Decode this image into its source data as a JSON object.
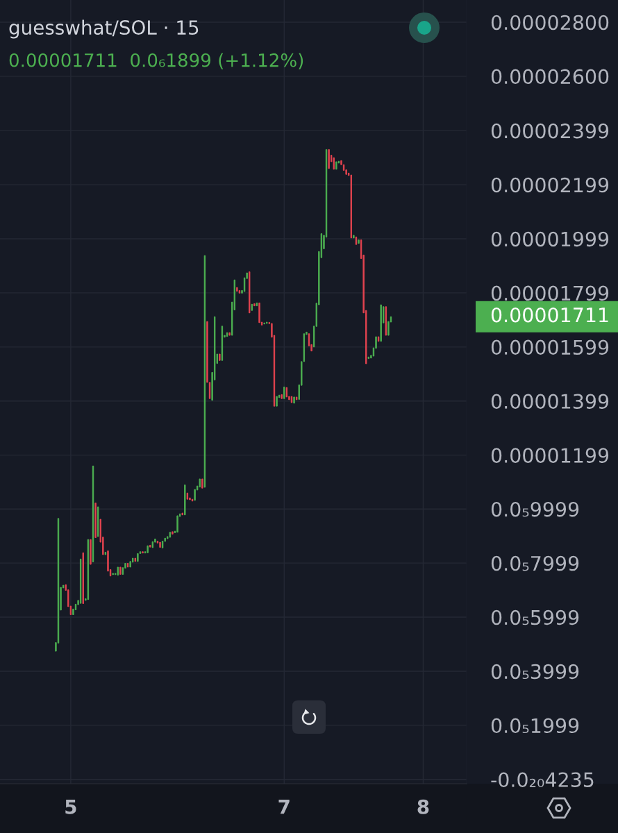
{
  "chart_data": {
    "type": "candlestick",
    "title": "guesswhat/SOL · 15",
    "subtitle": "0.00001711  0.0₆1899 (+1.12%)",
    "annotations": [
      "0.00001711"
    ],
    "categories": [
      null,
      null,
      null,
      null,
      null,
      null,
      null,
      null,
      null,
      null,
      null,
      null,
      null,
      null,
      null,
      null,
      null,
      null,
      null,
      null,
      null,
      null,
      null,
      null,
      null,
      null,
      null,
      null,
      "5",
      null,
      null,
      null,
      null,
      null,
      null,
      null,
      null,
      null,
      null,
      null,
      null,
      null,
      null,
      null,
      null,
      null,
      null,
      null,
      null,
      null,
      null,
      null,
      null,
      null,
      null,
      null,
      null,
      null,
      null,
      null,
      null,
      null,
      null,
      null,
      null,
      null,
      null,
      null,
      null,
      null,
      null,
      null,
      null,
      null,
      null,
      null,
      null,
      null,
      null,
      null,
      null,
      null,
      null,
      null,
      null,
      null,
      null,
      null,
      null,
      null,
      null,
      null,
      null,
      null,
      null,
      null,
      null,
      null,
      null,
      null,
      null,
      null,
      null,
      null,
      null,
      null,
      null,
      null,
      null,
      null,
      null,
      null,
      null,
      null,
      "7",
      null,
      null,
      null,
      null,
      null,
      null,
      null,
      null,
      null,
      null,
      null,
      null,
      null,
      null,
      null,
      null,
      null,
      null,
      null,
      null,
      null,
      null,
      null,
      null,
      null,
      null,
      null,
      null,
      null,
      null,
      null,
      null,
      null,
      null,
      null,
      null,
      null,
      null,
      null,
      null,
      null,
      null,
      null,
      null,
      null,
      null,
      null,
      null,
      null,
      null,
      null,
      null,
      null,
      null,
      null,
      "8",
      null,
      null,
      null,
      null,
      null,
      null,
      null,
      null,
      null,
      null,
      null,
      null,
      null,
      null,
      null,
      null,
      null
    ],
    "ohlc": [
      null,
      null,
      null,
      null,
      null,
      null,
      null,
      null,
      null,
      null,
      null,
      null,
      null,
      null,
      null,
      null,
      null,
      null,
      null,
      null,
      null,
      null,
      [
        4.74e-06,
        5.06e-06,
        4.74e-06,
        5.06e-06
      ],
      [
        5.04e-06,
        9.65e-06,
        5.04e-06,
        9.65e-06
      ],
      [
        6.26e-06,
        7.1e-06,
        6.26e-06,
        7.1e-06
      ],
      [
        7.08e-06,
        7.18e-06,
        7.08e-06,
        7.18e-06
      ],
      [
        7.2e-06,
        7.2e-06,
        6.99e-06,
        6.99e-06
      ],
      [
        7.01e-06,
        7.01e-06,
        6.39e-06,
        6.39e-06
      ],
      [
        6.41e-06,
        6.41e-06,
        6.09e-06,
        6.09e-06
      ],
      [
        6.09e-06,
        6.3e-06,
        6.09e-06,
        6.3e-06
      ],
      [
        6.27e-06,
        6.48e-06,
        6.27e-06,
        6.48e-06
      ],
      [
        6.46e-06,
        6.62e-06,
        6.46e-06,
        6.62e-06
      ],
      [
        6.51e-06,
        8.15e-06,
        6.51e-06,
        8.15e-06
      ],
      [
        8.38e-06,
        8.38e-06,
        6.5e-06,
        6.5e-06
      ],
      [
        6.62e-06,
        6.68e-06,
        6.62e-06,
        6.68e-06
      ],
      [
        6.65e-06,
        8.87e-06,
        6.65e-06,
        8.87e-06
      ],
      [
        8.87e-06,
        8.87e-06,
        7.95e-06,
        7.95e-06
      ],
      [
        8.04e-06,
        1.159e-05,
        8.04e-06,
        1.159e-05
      ],
      [
        1.022e-05,
        1.022e-05,
        8.94e-06,
        8.94e-06
      ],
      [
        8.98e-06,
        1.008e-05,
        8.98e-06,
        1.008e-05
      ],
      [
        9.62e-06,
        9.62e-06,
        8.77e-06,
        8.77e-06
      ],
      [
        8.96e-06,
        8.96e-06,
        8.31e-06,
        8.31e-06
      ],
      [
        8.31e-06,
        8.4e-06,
        8.31e-06,
        8.4e-06
      ],
      [
        8.45e-06,
        8.45e-06,
        7.7e-06,
        7.7e-06
      ],
      [
        7.76e-06,
        7.76e-06,
        7.52e-06,
        7.52e-06
      ],
      [
        7.57e-06,
        7.62e-06,
        7.57e-06,
        7.62e-06
      ],
      [
        7.57e-06,
        7.62e-06,
        7.57e-06,
        7.62e-06
      ],
      [
        7.55e-06,
        7.85e-06,
        7.55e-06,
        7.85e-06
      ],
      [
        7.85e-06,
        7.85e-06,
        7.58e-06,
        7.58e-06
      ],
      [
        7.58e-06,
        7.83e-06,
        7.58e-06,
        7.83e-06
      ],
      [
        7.81e-06,
        7.99e-06,
        7.81e-06,
        7.99e-06
      ],
      [
        7.99e-06,
        7.99e-06,
        7.85e-06,
        7.85e-06
      ],
      [
        7.85e-06,
        8.06e-06,
        7.85e-06,
        8.06e-06
      ],
      [
        8.03e-06,
        8.18e-06,
        8.03e-06,
        8.18e-06
      ],
      [
        8.18e-06,
        8.18e-06,
        8.06e-06,
        8.06e-06
      ],
      [
        8.06e-06,
        8.35e-06,
        8.06e-06,
        8.35e-06
      ],
      [
        8.35e-06,
        8.42e-06,
        8.35e-06,
        8.42e-06
      ],
      [
        8.42e-06,
        8.42e-06,
        8.37e-06,
        8.37e-06
      ],
      [
        8.37e-06,
        8.42e-06,
        8.37e-06,
        8.42e-06
      ],
      [
        8.38e-06,
        8.64e-06,
        8.38e-06,
        8.64e-06
      ],
      [
        8.66e-06,
        8.66e-06,
        8.59e-06,
        8.59e-06
      ],
      [
        8.57e-06,
        8.79e-06,
        8.57e-06,
        8.79e-06
      ],
      [
        8.77e-06,
        8.89e-06,
        8.77e-06,
        8.89e-06
      ],
      [
        8.81e-06,
        8.81e-06,
        8.74e-06,
        8.74e-06
      ],
      [
        8.77e-06,
        8.77e-06,
        8.58e-06,
        8.58e-06
      ],
      [
        8.56e-06,
        8.81e-06,
        8.56e-06,
        8.81e-06
      ],
      [
        8.8e-06,
        8.92e-06,
        8.8e-06,
        8.92e-06
      ],
      [
        8.9e-06,
        8.98e-06,
        8.9e-06,
        8.98e-06
      ],
      [
        8.95e-06,
        9.14e-06,
        8.95e-06,
        9.14e-06
      ],
      [
        9.16e-06,
        9.16e-06,
        9.07e-06,
        9.07e-06
      ],
      [
        9.12e-06,
        9.18e-06,
        9.12e-06,
        9.18e-06
      ],
      [
        9.14e-06,
        9.75e-06,
        9.14e-06,
        9.75e-06
      ],
      [
        9.72e-06,
        9.82e-06,
        9.72e-06,
        9.82e-06
      ],
      [
        9.85e-06,
        9.85e-06,
        9.78e-06,
        9.78e-06
      ],
      [
        9.78e-06,
        1.089e-05,
        9.78e-06,
        1.089e-05
      ],
      [
        1.059e-05,
        1.059e-05,
        1.036e-05,
        1.036e-05
      ],
      [
        1.041e-05,
        1.041e-05,
        1.034e-05,
        1.034e-05
      ],
      [
        1.036e-05,
        1.036e-05,
        1.029e-05,
        1.029e-05
      ],
      [
        1.032e-05,
        1.072e-05,
        1.032e-05,
        1.072e-05
      ],
      [
        1.07e-05,
        1.085e-05,
        1.07e-05,
        1.085e-05
      ],
      [
        1.081e-05,
        1.111e-05,
        1.081e-05,
        1.111e-05
      ],
      [
        1.111e-05,
        1.111e-05,
        1.077e-05,
        1.077e-05
      ],
      [
        1.08e-05,
        1.937e-05,
        1.08e-05,
        1.937e-05
      ],
      [
        1.693e-05,
        1.693e-05,
        1.468e-05,
        1.468e-05
      ],
      [
        1.468e-05,
        1.468e-05,
        1.408e-05,
        1.408e-05
      ],
      [
        1.402e-05,
        1.505e-05,
        1.402e-05,
        1.505e-05
      ],
      [
        1.477e-05,
        1.711e-05,
        1.477e-05,
        1.711e-05
      ],
      [
        1.538e-05,
        1.573e-05,
        1.538e-05,
        1.573e-05
      ],
      [
        1.573e-05,
        1.573e-05,
        1.549e-05,
        1.549e-05
      ],
      [
        1.549e-05,
        1.676e-05,
        1.549e-05,
        1.676e-05
      ],
      [
        1.635e-05,
        1.642e-05,
        1.635e-05,
        1.642e-05
      ],
      [
        1.638e-05,
        1.652e-05,
        1.638e-05,
        1.652e-05
      ],
      [
        1.652e-05,
        1.652e-05,
        1.642e-05,
        1.642e-05
      ],
      [
        1.642e-05,
        1.765e-05,
        1.642e-05,
        1.765e-05
      ],
      [
        1.736e-05,
        1.847e-05,
        1.736e-05,
        1.847e-05
      ],
      [
        1.819e-05,
        1.819e-05,
        1.805e-05,
        1.805e-05
      ],
      [
        1.808e-05,
        1.808e-05,
        1.798e-05,
        1.798e-05
      ],
      [
        1.798e-05,
        1.808e-05,
        1.798e-05,
        1.808e-05
      ],
      [
        1.804e-05,
        1.855e-05,
        1.804e-05,
        1.855e-05
      ],
      [
        1.852e-05,
        1.873e-05,
        1.852e-05,
        1.873e-05
      ],
      [
        1.877e-05,
        1.877e-05,
        1.725e-05,
        1.725e-05
      ],
      [
        1.734e-05,
        1.757e-05,
        1.734e-05,
        1.757e-05
      ],
      [
        1.759e-05,
        1.759e-05,
        1.751e-05,
        1.751e-05
      ],
      [
        1.751e-05,
        1.762e-05,
        1.751e-05,
        1.762e-05
      ],
      [
        1.762e-05,
        1.762e-05,
        1.689e-05,
        1.689e-05
      ],
      [
        1.691e-05,
        1.691e-05,
        1.68e-05,
        1.68e-05
      ],
      [
        1.684e-05,
        1.688e-05,
        1.684e-05,
        1.688e-05
      ],
      [
        1.686e-05,
        1.691e-05,
        1.686e-05,
        1.691e-05
      ],
      [
        1.69e-05,
        1.69e-05,
        1.685e-05,
        1.685e-05
      ],
      [
        1.686e-05,
        1.686e-05,
        1.635e-05,
        1.635e-05
      ],
      [
        1.642e-05,
        1.642e-05,
        1.38e-05,
        1.38e-05
      ],
      [
        1.38e-05,
        1.416e-05,
        1.38e-05,
        1.416e-05
      ],
      [
        1.412e-05,
        1.421e-05,
        1.412e-05,
        1.421e-05
      ],
      [
        1.423e-05,
        1.423e-05,
        1.408e-05,
        1.408e-05
      ],
      [
        1.408e-05,
        1.451e-05,
        1.408e-05,
        1.451e-05
      ],
      [
        1.449e-05,
        1.449e-05,
        1.414e-05,
        1.414e-05
      ],
      [
        1.416e-05,
        1.416e-05,
        1.404e-05,
        1.404e-05
      ],
      [
        1.416e-05,
        1.416e-05,
        1.393e-05,
        1.393e-05
      ],
      [
        1.391e-05,
        1.414e-05,
        1.391e-05,
        1.414e-05
      ],
      [
        1.414e-05,
        1.414e-05,
        1.404e-05,
        1.404e-05
      ],
      [
        1.405e-05,
        1.459e-05,
        1.405e-05,
        1.459e-05
      ],
      [
        1.457e-05,
        1.545e-05,
        1.457e-05,
        1.545e-05
      ],
      [
        1.545e-05,
        1.648e-05,
        1.545e-05,
        1.648e-05
      ],
      [
        1.645e-05,
        1.654e-05,
        1.645e-05,
        1.654e-05
      ],
      [
        1.648e-05,
        1.648e-05,
        1.603e-05,
        1.603e-05
      ],
      [
        1.608e-05,
        1.608e-05,
        1.584e-05,
        1.584e-05
      ],
      [
        1.599e-05,
        1.676e-05,
        1.599e-05,
        1.676e-05
      ],
      [
        1.675e-05,
        1.761e-05,
        1.675e-05,
        1.761e-05
      ],
      [
        1.755e-05,
        1.952e-05,
        1.755e-05,
        1.952e-05
      ],
      [
        1.929e-05,
        2.018e-05,
        1.929e-05,
        2.018e-05
      ],
      [
        1.962e-05,
        2.012e-05,
        1.962e-05,
        2.012e-05
      ],
      [
        2.005e-05,
        2.329e-05,
        2.005e-05,
        2.329e-05
      ],
      [
        2.329e-05,
        2.329e-05,
        2.259e-05,
        2.259e-05
      ],
      [
        2.308e-05,
        2.308e-05,
        2.284e-05,
        2.284e-05
      ],
      [
        2.299e-05,
        2.299e-05,
        2.256e-05,
        2.256e-05
      ],
      [
        2.256e-05,
        2.284e-05,
        2.256e-05,
        2.284e-05
      ],
      [
        2.279e-05,
        2.286e-05,
        2.279e-05,
        2.286e-05
      ],
      [
        2.288e-05,
        2.288e-05,
        2.273e-05,
        2.273e-05
      ],
      [
        2.273e-05,
        2.273e-05,
        2.252e-05,
        2.252e-05
      ],
      [
        2.254e-05,
        2.254e-05,
        2.237e-05,
        2.237e-05
      ],
      [
        2.242e-05,
        2.242e-05,
        2.233e-05,
        2.233e-05
      ],
      [
        2.235e-05,
        2.235e-05,
        2.002e-05,
        2.002e-05
      ],
      [
        2.002e-05,
        2.012e-05,
        2.002e-05,
        2.012e-05
      ],
      [
        2.006e-05,
        2.006e-05,
        1.978e-05,
        1.978e-05
      ],
      [
        1.982e-05,
        1.995e-05,
        1.982e-05,
        1.995e-05
      ],
      [
        1.995e-05,
        1.995e-05,
        1.926e-05,
        1.926e-05
      ],
      [
        1.939e-05,
        1.939e-05,
        1.725e-05,
        1.725e-05
      ],
      [
        1.734e-05,
        1.734e-05,
        1.537e-05,
        1.537e-05
      ],
      [
        1.556e-05,
        1.562e-05,
        1.556e-05,
        1.562e-05
      ],
      [
        1.558e-05,
        1.568e-05,
        1.558e-05,
        1.568e-05
      ],
      [
        1.565e-05,
        1.596e-05,
        1.565e-05,
        1.596e-05
      ],
      [
        1.594e-05,
        1.637e-05,
        1.594e-05,
        1.637e-05
      ],
      [
        1.637e-05,
        1.637e-05,
        1.62e-05,
        1.62e-05
      ],
      [
        1.62e-05,
        1.755e-05,
        1.62e-05,
        1.755e-05
      ],
      [
        1.688e-05,
        1.748e-05,
        1.688e-05,
        1.748e-05
      ],
      [
        1.748e-05,
        1.748e-05,
        1.642e-05,
        1.642e-05
      ],
      [
        1.642e-05,
        1.693e-05,
        1.642e-05,
        1.693e-05
      ],
      [
        1.691e-05,
        1.711e-05,
        1.691e-05,
        1.711e-05
      ],
      null,
      null,
      null,
      null,
      null,
      null,
      null,
      null,
      null,
      null,
      null,
      null,
      null,
      null,
      null,
      null,
      null,
      null,
      null,
      null,
      null,
      null,
      null,
      null,
      null,
      null,
      null,
      null,
      null,
      null
    ],
    "colors": [
      null,
      null,
      null,
      null,
      null,
      null,
      null,
      null,
      null,
      null,
      null,
      null,
      null,
      null,
      null,
      null,
      null,
      null,
      null,
      null,
      null,
      null,
      "#4caf50",
      "#4caf50",
      "#4caf50",
      "#4caf50",
      "#e2434f",
      "#e2434f",
      "#e2434f",
      "#4caf50",
      "#4caf50",
      "#4caf50",
      "#4caf50",
      "#e2434f",
      "#4caf50",
      "#4caf50",
      "#e2434f",
      "#4caf50",
      "#e2434f",
      "#4caf50",
      "#e2434f",
      "#e2434f",
      "#4caf50",
      "#e2434f",
      "#e2434f",
      "#4caf50",
      "#4caf50",
      "#4caf50",
      "#e2434f",
      "#4caf50",
      "#4caf50",
      "#e2434f",
      "#4caf50",
      "#4caf50",
      "#e2434f",
      "#4caf50",
      "#4caf50",
      "#e2434f",
      "#4caf50",
      "#4caf50",
      "#e2434f",
      "#4caf50",
      "#4caf50",
      "#e2434f",
      "#e2434f",
      "#4caf50",
      "#4caf50",
      "#4caf50",
      "#4caf50",
      "#e2434f",
      "#4caf50",
      "#4caf50",
      "#4caf50",
      "#e2434f",
      "#4caf50",
      "#e2434f",
      "#e2434f",
      "#e2434f",
      "#4caf50",
      "#4caf50",
      "#4caf50",
      "#e2434f",
      "#4caf50",
      "#e2434f",
      "#e2434f",
      "#4caf50",
      "#4caf50",
      "#4caf50",
      "#e2434f",
      "#4caf50",
      "#4caf50",
      "#4caf50",
      "#e2434f",
      "#4caf50",
      "#4caf50",
      "#e2434f",
      "#e2434f",
      "#4caf50",
      "#4caf50",
      "#4caf50",
      "#e2434f",
      "#4caf50",
      "#e2434f",
      "#4caf50",
      "#e2434f",
      "#e2434f",
      "#4caf50",
      "#4caf50",
      "#e2434f",
      "#e2434f",
      "#e2434f",
      "#4caf50",
      "#4caf50",
      "#e2434f",
      "#4caf50",
      "#e2434f",
      "#e2434f",
      "#e2434f",
      "#4caf50",
      "#e2434f",
      "#4caf50",
      "#4caf50",
      "#4caf50",
      "#4caf50",
      "#e2434f",
      "#e2434f",
      "#4caf50",
      "#4caf50",
      "#4caf50",
      "#4caf50",
      "#4caf50",
      "#4caf50",
      "#e2434f",
      "#e2434f",
      "#e2434f",
      "#4caf50",
      "#4caf50",
      "#e2434f",
      "#e2434f",
      "#e2434f",
      "#e2434f",
      "#e2434f",
      "#4caf50",
      "#e2434f",
      "#4caf50",
      "#e2434f",
      "#e2434f",
      "#e2434f",
      "#4caf50",
      "#4caf50",
      "#4caf50",
      "#4caf50",
      "#e2434f",
      "#4caf50",
      "#4caf50",
      "#e2434f",
      "#4caf50",
      "#4caf50",
      null,
      null,
      null,
      null,
      null,
      null,
      null,
      null,
      null,
      null,
      null,
      null,
      null,
      null,
      null,
      null,
      null,
      null,
      null,
      null,
      null,
      null,
      null,
      null,
      null,
      null,
      null,
      null,
      null,
      null
    ],
    "ylim": [
      -1.6e-07,
      2.882e-05
    ],
    "yticks": [
      {
        "value": 2.8e-05,
        "label": "0.00002800"
      },
      {
        "value": 2.6e-05,
        "label": "0.00002600"
      },
      {
        "value": 2.399e-05,
        "label": "0.00002399"
      },
      {
        "value": 2.199e-05,
        "label": "0.00002199"
      },
      {
        "value": 1.999e-05,
        "label": "0.00001999"
      },
      {
        "value": 1.799e-05,
        "label": "0.00001799"
      },
      {
        "value": 1.599e-05,
        "label": "0.00001599"
      },
      {
        "value": 1.399e-05,
        "label": "0.00001399"
      },
      {
        "value": 1.199e-05,
        "label": "0.00001199"
      },
      {
        "value": 9.999e-06,
        "label": "0.0₅9999"
      },
      {
        "value": 7.999e-06,
        "label": "0.0₅7999"
      },
      {
        "value": 5.999e-06,
        "label": "0.0₅5999"
      },
      {
        "value": 3.999e-06,
        "label": "0.0₅3999"
      },
      {
        "value": 1.999e-06,
        "label": "0.0₅1999"
      },
      {
        "value": -4.235e-21,
        "label": "-0.0₂₀4235"
      }
    ],
    "grid": true
  }
}
